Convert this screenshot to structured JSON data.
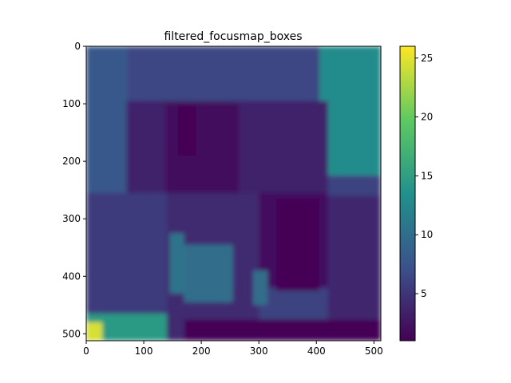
{
  "chart_data": {
    "type": "heatmap",
    "title": "filtered_focusmap_boxes",
    "xlabel": "",
    "ylabel": "",
    "image_size": [
      512,
      512
    ],
    "xlim": [
      0,
      512
    ],
    "ylim": [
      512,
      0
    ],
    "x_ticks": [
      0,
      100,
      200,
      300,
      400,
      500
    ],
    "y_ticks": [
      0,
      100,
      200,
      300,
      400,
      500
    ],
    "colorbar": {
      "min": 1,
      "max": 26,
      "ticks": [
        5,
        10,
        15,
        20,
        25
      ]
    },
    "colormap": "viridis",
    "regions": [
      {
        "x": [
          0,
          512
        ],
        "y": [
          0,
          512
        ],
        "value": 6.0
      },
      {
        "x": [
          0,
          72
        ],
        "y": [
          0,
          265
        ],
        "value": 7.8
      },
      {
        "x": [
          72,
          512
        ],
        "y": [
          0,
          95
        ],
        "value": 6.3
      },
      {
        "x": [
          405,
          512
        ],
        "y": [
          0,
          225
        ],
        "value": 13.0
      },
      {
        "x": [
          70,
          420
        ],
        "y": [
          95,
          265
        ],
        "value": 3.5
      },
      {
        "x": [
          138,
          265
        ],
        "y": [
          100,
          255
        ],
        "value": 1.8
      },
      {
        "x": [
          160,
          190
        ],
        "y": [
          100,
          190
        ],
        "value": 0.8
      },
      {
        "x": [
          300,
          420
        ],
        "y": [
          255,
          420
        ],
        "value": 2.2
      },
      {
        "x": [
          330,
          405
        ],
        "y": [
          265,
          425
        ],
        "value": 1.3
      },
      {
        "x": [
          100,
          300
        ],
        "y": [
          255,
          512
        ],
        "value": 4.2
      },
      {
        "x": [
          0,
          140
        ],
        "y": [
          255,
          512
        ],
        "value": 5.5
      },
      {
        "x": [
          145,
          170
        ],
        "y": [
          325,
          430
        ],
        "value": 10.5
      },
      {
        "x": [
          170,
          255
        ],
        "y": [
          345,
          445
        ],
        "value": 10.0
      },
      {
        "x": [
          290,
          315
        ],
        "y": [
          390,
          450
        ],
        "value": 10.0
      },
      {
        "x": [
          0,
          140
        ],
        "y": [
          465,
          512
        ],
        "value": 14.5
      },
      {
        "x": [
          0,
          28
        ],
        "y": [
          480,
          512
        ],
        "value": 24.5
      },
      {
        "x": [
          170,
          512
        ],
        "y": [
          475,
          512
        ],
        "value": 1.3
      },
      {
        "x": [
          420,
          512
        ],
        "y": [
          260,
          475
        ],
        "value": 3.8
      }
    ]
  }
}
